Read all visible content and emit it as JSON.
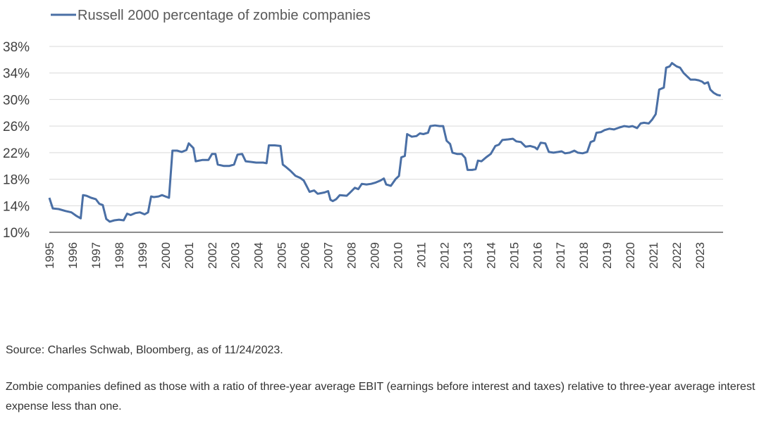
{
  "chart_data": {
    "type": "line",
    "series": [
      {
        "name": "Russell 2000 percentage of zombie companies",
        "color": "#4a6fa5",
        "points": [
          [
            1995.0,
            15.2
          ],
          [
            1995.15,
            13.6
          ],
          [
            1995.4,
            13.5
          ],
          [
            1995.7,
            13.2
          ],
          [
            1995.95,
            13.0
          ],
          [
            1996.15,
            12.5
          ],
          [
            1996.35,
            12.1
          ],
          [
            1996.45,
            15.6
          ],
          [
            1996.6,
            15.5
          ],
          [
            1996.8,
            15.2
          ],
          [
            1997.0,
            15.0
          ],
          [
            1997.15,
            14.3
          ],
          [
            1997.3,
            14.1
          ],
          [
            1997.45,
            12.0
          ],
          [
            1997.6,
            11.6
          ],
          [
            1997.8,
            11.8
          ],
          [
            1998.0,
            11.9
          ],
          [
            1998.2,
            11.8
          ],
          [
            1998.35,
            12.8
          ],
          [
            1998.5,
            12.6
          ],
          [
            1998.7,
            12.9
          ],
          [
            1998.9,
            13.0
          ],
          [
            1999.1,
            12.7
          ],
          [
            1999.25,
            13.0
          ],
          [
            1999.38,
            15.4
          ],
          [
            1999.5,
            15.3
          ],
          [
            1999.7,
            15.4
          ],
          [
            1999.85,
            15.6
          ],
          [
            2000.0,
            15.4
          ],
          [
            2000.15,
            15.2
          ],
          [
            2000.3,
            22.3
          ],
          [
            2000.5,
            22.3
          ],
          [
            2000.7,
            22.1
          ],
          [
            2000.9,
            22.4
          ],
          [
            2001.0,
            23.4
          ],
          [
            2001.2,
            22.7
          ],
          [
            2001.3,
            20.7
          ],
          [
            2001.6,
            20.9
          ],
          [
            2001.85,
            20.9
          ],
          [
            2002.0,
            21.8
          ],
          [
            2002.15,
            21.8
          ],
          [
            2002.25,
            20.2
          ],
          [
            2002.5,
            20.0
          ],
          [
            2002.75,
            20.0
          ],
          [
            2002.95,
            20.2
          ],
          [
            2003.1,
            21.7
          ],
          [
            2003.3,
            21.8
          ],
          [
            2003.45,
            20.7
          ],
          [
            2003.7,
            20.6
          ],
          [
            2003.9,
            20.5
          ],
          [
            2004.2,
            20.5
          ],
          [
            2004.35,
            20.4
          ],
          [
            2004.45,
            23.1
          ],
          [
            2004.7,
            23.1
          ],
          [
            2004.95,
            23.0
          ],
          [
            2005.05,
            20.2
          ],
          [
            2005.2,
            19.8
          ],
          [
            2005.4,
            19.2
          ],
          [
            2005.6,
            18.5
          ],
          [
            2005.8,
            18.2
          ],
          [
            2005.95,
            17.8
          ],
          [
            2006.1,
            16.8
          ],
          [
            2006.2,
            16.1
          ],
          [
            2006.4,
            16.3
          ],
          [
            2006.55,
            15.8
          ],
          [
            2006.7,
            15.9
          ],
          [
            2006.85,
            16.0
          ],
          [
            2007.0,
            16.2
          ],
          [
            2007.1,
            14.9
          ],
          [
            2007.2,
            14.7
          ],
          [
            2007.35,
            15.0
          ],
          [
            2007.5,
            15.6
          ],
          [
            2007.8,
            15.5
          ],
          [
            2007.95,
            16.0
          ],
          [
            2008.15,
            16.7
          ],
          [
            2008.3,
            16.5
          ],
          [
            2008.45,
            17.3
          ],
          [
            2008.65,
            17.2
          ],
          [
            2008.85,
            17.3
          ],
          [
            2009.05,
            17.5
          ],
          [
            2009.25,
            17.8
          ],
          [
            2009.4,
            18.1
          ],
          [
            2009.5,
            17.2
          ],
          [
            2009.7,
            17.0
          ],
          [
            2009.9,
            18.0
          ],
          [
            2010.05,
            18.5
          ],
          [
            2010.15,
            21.3
          ],
          [
            2010.3,
            21.5
          ],
          [
            2010.4,
            24.8
          ],
          [
            2010.6,
            24.4
          ],
          [
            2010.8,
            24.5
          ],
          [
            2010.95,
            24.9
          ],
          [
            2011.1,
            24.8
          ],
          [
            2011.3,
            25.0
          ],
          [
            2011.4,
            26.0
          ],
          [
            2011.6,
            26.1
          ],
          [
            2011.8,
            26.0
          ],
          [
            2011.95,
            26.0
          ],
          [
            2012.1,
            23.8
          ],
          [
            2012.25,
            23.3
          ],
          [
            2012.35,
            22.0
          ],
          [
            2012.55,
            21.8
          ],
          [
            2012.75,
            21.8
          ],
          [
            2012.9,
            21.2
          ],
          [
            2013.0,
            19.4
          ],
          [
            2013.2,
            19.4
          ],
          [
            2013.35,
            19.5
          ],
          [
            2013.45,
            20.8
          ],
          [
            2013.6,
            20.7
          ],
          [
            2013.8,
            21.3
          ],
          [
            2014.0,
            21.8
          ],
          [
            2014.2,
            23.0
          ],
          [
            2014.35,
            23.2
          ],
          [
            2014.5,
            23.9
          ],
          [
            2014.75,
            24.0
          ],
          [
            2014.95,
            24.1
          ],
          [
            2015.1,
            23.7
          ],
          [
            2015.3,
            23.6
          ],
          [
            2015.5,
            22.9
          ],
          [
            2015.7,
            23.0
          ],
          [
            2015.9,
            22.8
          ],
          [
            2016.0,
            22.5
          ],
          [
            2016.15,
            23.5
          ],
          [
            2016.35,
            23.4
          ],
          [
            2016.5,
            22.1
          ],
          [
            2016.7,
            22.0
          ],
          [
            2016.9,
            22.1
          ],
          [
            2017.05,
            22.2
          ],
          [
            2017.2,
            21.9
          ],
          [
            2017.4,
            22.0
          ],
          [
            2017.6,
            22.3
          ],
          [
            2017.75,
            22.0
          ],
          [
            2017.95,
            21.9
          ],
          [
            2018.15,
            22.1
          ],
          [
            2018.3,
            23.6
          ],
          [
            2018.45,
            23.8
          ],
          [
            2018.55,
            25.0
          ],
          [
            2018.75,
            25.1
          ],
          [
            2018.9,
            25.4
          ],
          [
            2019.1,
            25.6
          ],
          [
            2019.3,
            25.5
          ],
          [
            2019.55,
            25.8
          ],
          [
            2019.75,
            26.0
          ],
          [
            2019.95,
            25.9
          ],
          [
            2020.1,
            26.0
          ],
          [
            2020.3,
            25.7
          ],
          [
            2020.45,
            26.4
          ],
          [
            2020.6,
            26.5
          ],
          [
            2020.8,
            26.4
          ],
          [
            2020.95,
            27.0
          ],
          [
            2021.1,
            27.8
          ],
          [
            2021.25,
            31.5
          ],
          [
            2021.45,
            31.8
          ],
          [
            2021.55,
            34.8
          ],
          [
            2021.7,
            35.0
          ],
          [
            2021.8,
            35.5
          ],
          [
            2022.0,
            35.0
          ],
          [
            2022.15,
            34.8
          ],
          [
            2022.3,
            34.0
          ],
          [
            2022.45,
            33.5
          ],
          [
            2022.6,
            33.0
          ],
          [
            2022.8,
            33.0
          ],
          [
            2022.95,
            32.9
          ],
          [
            2023.1,
            32.7
          ],
          [
            2023.2,
            32.4
          ],
          [
            2023.35,
            32.6
          ],
          [
            2023.45,
            31.5
          ],
          [
            2023.6,
            31.0
          ],
          [
            2023.75,
            30.7
          ],
          [
            2023.9,
            30.6
          ]
        ]
      }
    ],
    "ylim": [
      10,
      38
    ],
    "yticks": [
      10,
      14,
      18,
      22,
      26,
      30,
      34,
      38
    ],
    "ytick_labels": [
      "10%",
      "14%",
      "18%",
      "22%",
      "26%",
      "30%",
      "34%",
      "38%"
    ],
    "xlim": [
      1995,
      2024
    ],
    "xtick_labels": [
      "1995",
      "1996",
      "1997",
      "1998",
      "1999",
      "2000",
      "2001",
      "2002",
      "2003",
      "2004",
      "2005",
      "2006",
      "2007",
      "2008",
      "2009",
      "2010",
      "2011",
      "2012",
      "2013",
      "2014",
      "2015",
      "2016",
      "2017",
      "2018",
      "2019",
      "2020",
      "2021",
      "2022",
      "2023"
    ],
    "grid": "horizontal",
    "legend_position": "top-left"
  },
  "notes": {
    "source": "Source: Charles Schwab, Bloomberg, as of 11/24/2023.",
    "definition": "Zombie companies defined as those with a ratio of three-year average EBIT (earnings before interest and taxes) relative to three-year average interest expense less than one."
  }
}
